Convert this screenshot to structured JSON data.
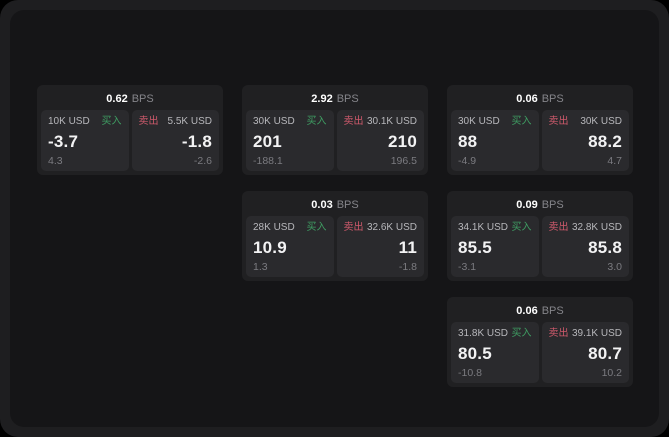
{
  "colors": {
    "buy_green": "#3f9e63",
    "sell_red": "#cf5a6c",
    "panel_bg": "#151517",
    "card_bg": "#202022",
    "tile_bg": "#2a2a2d"
  },
  "cards": [
    {
      "bps": "0.62",
      "unit": "BPS",
      "buy": {
        "amount": "10K USD",
        "label": "买入",
        "price": "-3.7",
        "delta": "4.3"
      },
      "sell": {
        "amount": "5.5K USD",
        "label": "卖出",
        "price": "-1.8",
        "delta": "-2.6"
      }
    },
    {
      "bps": "2.92",
      "unit": "BPS",
      "buy": {
        "amount": "30K USD",
        "label": "买入",
        "price": "201",
        "delta": "-188.1"
      },
      "sell": {
        "amount": "30.1K USD",
        "label": "卖出",
        "price": "210",
        "delta": "196.5"
      }
    },
    {
      "bps": "0.06",
      "unit": "BPS",
      "buy": {
        "amount": "30K USD",
        "label": "买入",
        "price": "88",
        "delta": "-4.9"
      },
      "sell": {
        "amount": "30K USD",
        "label": "卖出",
        "price": "88.2",
        "delta": "4.7"
      }
    },
    {
      "bps": "0.03",
      "unit": "BPS",
      "buy": {
        "amount": "28K USD",
        "label": "买入",
        "price": "10.9",
        "delta": "1.3"
      },
      "sell": {
        "amount": "32.6K USD",
        "label": "卖出",
        "price": "11",
        "delta": "-1.8"
      }
    },
    {
      "bps": "0.09",
      "unit": "BPS",
      "buy": {
        "amount": "34.1K USD",
        "label": "买入",
        "price": "85.5",
        "delta": "-3.1"
      },
      "sell": {
        "amount": "32.8K USD",
        "label": "卖出",
        "price": "85.8",
        "delta": "3.0"
      }
    },
    {
      "bps": "0.06",
      "unit": "BPS",
      "buy": {
        "amount": "31.8K USD",
        "label": "买入",
        "price": "80.5",
        "delta": "-10.8"
      },
      "sell": {
        "amount": "39.1K USD",
        "label": "卖出",
        "price": "80.7",
        "delta": "10.2"
      }
    }
  ]
}
